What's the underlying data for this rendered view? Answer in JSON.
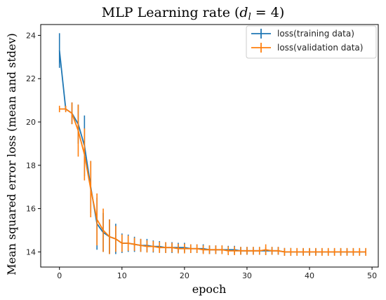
{
  "chart_data": {
    "type": "line",
    "title_main": "MLP Learning rate (",
    "title_math_var": "d",
    "title_math_sub": "l",
    "title_math_rest": " = 4)",
    "xlabel": "epoch",
    "ylabel": "Mean squared error loss (mean and stdev)",
    "xlim": [
      -3,
      51
    ],
    "ylim": [
      13.3,
      24.5
    ],
    "xticks": [
      0,
      10,
      20,
      30,
      40,
      50
    ],
    "yticks": [
      14,
      16,
      18,
      20,
      22,
      24
    ],
    "grid": false,
    "legend_position": "top-right",
    "series": [
      {
        "name": "loss(training data)",
        "color": "#1f77b4",
        "x": [
          0,
          1,
          2,
          3,
          4,
          5,
          6,
          7,
          8,
          9,
          10,
          11,
          12,
          13,
          14,
          15,
          16,
          17,
          18,
          19,
          20,
          21,
          22,
          23,
          24,
          25,
          26,
          27,
          28,
          29,
          30,
          31,
          32,
          33,
          34,
          35,
          36,
          37,
          38,
          39,
          40,
          41,
          42,
          43,
          44,
          45,
          46,
          47,
          48,
          49
        ],
        "y": [
          23.3,
          20.6,
          20.4,
          19.9,
          18.9,
          17.0,
          15.3,
          14.9,
          14.7,
          14.6,
          14.4,
          14.4,
          14.35,
          14.3,
          14.3,
          14.25,
          14.25,
          14.2,
          14.2,
          14.2,
          14.2,
          14.15,
          14.15,
          14.15,
          14.1,
          14.1,
          14.1,
          14.1,
          14.1,
          14.05,
          14.05,
          14.05,
          14.05,
          14.05,
          14.05,
          14.05,
          14.0,
          14.0,
          14.0,
          14.0,
          14.0,
          14.0,
          14.0,
          14.0,
          14.0,
          14.0,
          14.0,
          14.0,
          14.0,
          14.0
        ],
        "err": [
          0.8,
          0.1,
          0.5,
          0.9,
          1.4,
          1.2,
          1.2,
          0.9,
          0.8,
          0.7,
          0.45,
          0.4,
          0.35,
          0.3,
          0.3,
          0.28,
          0.25,
          0.25,
          0.25,
          0.22,
          0.22,
          0.2,
          0.2,
          0.2,
          0.2,
          0.2,
          0.2,
          0.18,
          0.18,
          0.18,
          0.18,
          0.18,
          0.18,
          0.18,
          0.18,
          0.18,
          0.18,
          0.18,
          0.16,
          0.16,
          0.16,
          0.16,
          0.16,
          0.16,
          0.16,
          0.16,
          0.16,
          0.16,
          0.16,
          0.16
        ]
      },
      {
        "name": "loss(validation data)",
        "color": "#ff7f0e",
        "x": [
          0,
          1,
          2,
          3,
          4,
          5,
          6,
          7,
          8,
          9,
          10,
          11,
          12,
          13,
          14,
          15,
          16,
          17,
          18,
          19,
          20,
          21,
          22,
          23,
          24,
          25,
          26,
          27,
          28,
          29,
          30,
          31,
          32,
          33,
          34,
          35,
          36,
          37,
          38,
          39,
          40,
          41,
          42,
          43,
          44,
          45,
          46,
          47,
          48,
          49
        ],
        "y": [
          20.6,
          20.6,
          20.4,
          19.6,
          18.5,
          16.9,
          15.5,
          15.0,
          14.7,
          14.6,
          14.4,
          14.4,
          14.35,
          14.3,
          14.25,
          14.25,
          14.2,
          14.2,
          14.2,
          14.15,
          14.15,
          14.15,
          14.15,
          14.1,
          14.1,
          14.1,
          14.1,
          14.05,
          14.05,
          14.05,
          14.05,
          14.05,
          14.05,
          14.1,
          14.05,
          14.05,
          14.0,
          14.0,
          14.0,
          14.0,
          14.0,
          14.0,
          14.0,
          14.0,
          14.0,
          14.0,
          14.0,
          14.0,
          14.0,
          14.0
        ],
        "err": [
          0.15,
          0.15,
          0.5,
          1.2,
          1.2,
          1.3,
          1.2,
          1.0,
          0.8,
          0.6,
          0.4,
          0.35,
          0.3,
          0.3,
          0.28,
          0.25,
          0.25,
          0.25,
          0.22,
          0.22,
          0.22,
          0.2,
          0.2,
          0.2,
          0.2,
          0.2,
          0.2,
          0.2,
          0.2,
          0.18,
          0.18,
          0.18,
          0.18,
          0.25,
          0.18,
          0.18,
          0.18,
          0.18,
          0.18,
          0.18,
          0.18,
          0.18,
          0.18,
          0.18,
          0.18,
          0.18,
          0.18,
          0.18,
          0.18,
          0.18
        ]
      }
    ]
  }
}
